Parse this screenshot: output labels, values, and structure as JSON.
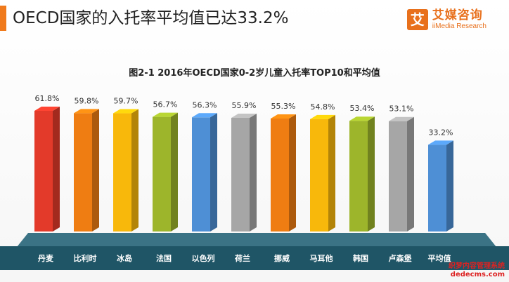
{
  "header": {
    "headline": "OECD国家的入托率平均值已达33.2%"
  },
  "brand": {
    "mark": "艾",
    "name": "艾媒咨询",
    "subtitle": "iiMedia Research"
  },
  "colors": {
    "accent": "#f07a1c",
    "baseband": "#1f5566",
    "baseband_top": "#3b7385"
  },
  "chart_data": {
    "type": "bar",
    "title": "图2-1 2016年OECD国家0-2岁儿童入托率TOP10和平均值",
    "xlabel": "",
    "ylabel": "",
    "categories": [
      "丹麦",
      "比利时",
      "冰岛",
      "法国",
      "以色列",
      "荷兰",
      "挪威",
      "马耳他",
      "韩国",
      "卢森堡",
      "平均值"
    ],
    "values": [
      61.8,
      59.8,
      59.7,
      56.7,
      56.3,
      55.9,
      55.3,
      54.8,
      53.4,
      53.1,
      33.2
    ],
    "value_labels": [
      "61.8%",
      "59.8%",
      "59.7%",
      "56.7%",
      "56.3%",
      "55.9%",
      "55.3%",
      "54.8%",
      "53.4%",
      "53.1%",
      "33.2%"
    ],
    "bar_colors": [
      "#e33a2a",
      "#ef7d12",
      "#f8b80b",
      "#9db52b",
      "#4e8fd5",
      "#a6a6a6",
      "#ef7d12",
      "#f8b80b",
      "#9db52b",
      "#a6a6a6",
      "#4e8fd5"
    ],
    "grid": false,
    "legend": "none"
  },
  "watermark": {
    "line1": "织梦内容管理系统",
    "line2": "dedecms.com"
  }
}
